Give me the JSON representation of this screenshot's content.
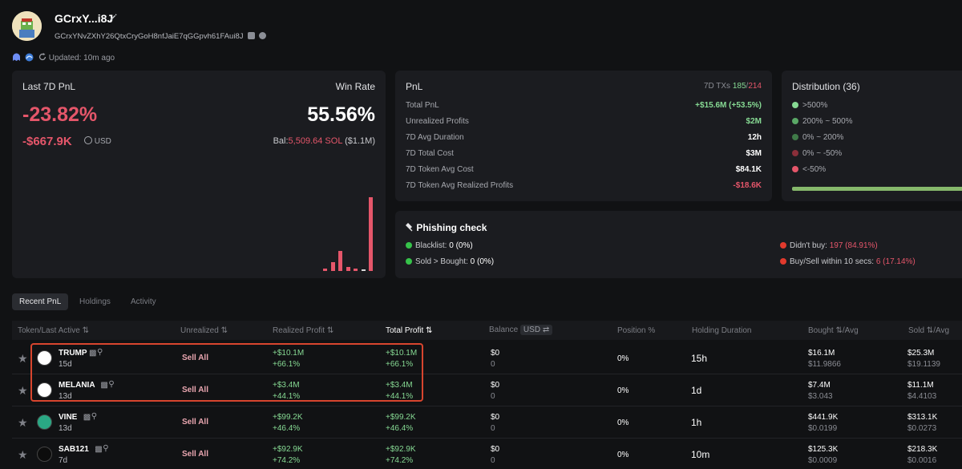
{
  "header": {
    "wallet_name": "GCrxY...i8J",
    "address": "GCrxYNvZXhY26QtxCryGoH8nfJaiE7qGGpvh61FAui8J",
    "updated": "Updated: 10m ago"
  },
  "summary": {
    "pnl_label": "Last 7D PnL",
    "pnl_pct": "-23.82%",
    "pnl_usd": "-$667.9K",
    "usd_label": "USD",
    "winrate_label": "Win Rate",
    "winrate": "55.56%",
    "bal_prefix": "Bal:",
    "bal_sol": "5,509.64 SOL",
    "bal_usd": "($1.1M)",
    "bars": [
      0.03,
      0.12,
      0.27,
      0.05,
      0.03,
      0.02,
      1.0
    ]
  },
  "pnl": {
    "title": "PnL",
    "txs_label": "7D TXs",
    "txs_buy": "185",
    "txs_sep": "/",
    "txs_sell": "214",
    "rows": [
      {
        "key": "Total PnL",
        "value": "+$15.6M (+53.5%)",
        "tone": "green"
      },
      {
        "key": "Unrealized Profits",
        "value": "$2M",
        "tone": "green"
      },
      {
        "key": "7D Avg Duration",
        "value": "12h",
        "tone": "white"
      },
      {
        "key": "7D Total Cost",
        "value": "$3M",
        "tone": "white"
      },
      {
        "key": "7D Token Avg Cost",
        "value": "$84.1K",
        "tone": "white"
      },
      {
        "key": "7D Token Avg Realized Profits",
        "value": "-$18.6K",
        "tone": "red"
      }
    ]
  },
  "distribution": {
    "title": "Distribution (36)",
    "items": [
      {
        "label": ">500%",
        "color": "#86d993"
      },
      {
        "label": "200% ~ 500%",
        "color": "#5aa866"
      },
      {
        "label": "0% ~ 200%",
        "color": "#3f7a48"
      },
      {
        "label": "0% ~ -50%",
        "color": "#8a2f3a"
      },
      {
        "label": "<-50%",
        "color": "#e5566a"
      }
    ],
    "bar_fill": 0.97
  },
  "phishing": {
    "title": "Phishing check",
    "blacklist_label": "Blacklist:",
    "blacklist_value": "0 (0%)",
    "sold_label": "Sold > Bought:",
    "sold_value": "0 (0%)",
    "didnt_label": "Didn't buy:",
    "didnt_value": "197 (84.91%)",
    "buysell_label": "Buy/Sell within 10 secs:",
    "buysell_value": "6 (17.14%)"
  },
  "tabs": [
    "Recent PnL",
    "Holdings",
    "Activity"
  ],
  "table": {
    "headers": {
      "token": "Token/Last Active",
      "unrealized": "Unrealized",
      "realized": "Realized Profit",
      "total": "Total Profit",
      "balance": "Balance",
      "balance_unit": "USD",
      "position": "Position %",
      "duration": "Holding Duration",
      "bought": "Bought",
      "bought_suffix": "/Avg",
      "sold": "Sold",
      "sold_suffix": "/Avg"
    },
    "sell_all": "Sell All",
    "rows": [
      {
        "name": "TRUMP",
        "age": "15d",
        "realized": "+$10.1M",
        "realized_pct": "+66.1%",
        "total": "+$10.1M",
        "total_pct": "+66.1%",
        "balance": "$0",
        "balance_sub": "0",
        "position": "0%",
        "duration": "15h",
        "bought": "$16.1M",
        "bought_avg": "$11.9866",
        "sold": "$25.3M",
        "sold_avg": "$19.1139",
        "icon_color": "#ffffff"
      },
      {
        "name": "MELANIA",
        "age": "13d",
        "realized": "+$3.4M",
        "realized_pct": "+44.1%",
        "total": "+$3.4M",
        "total_pct": "+44.1%",
        "balance": "$0",
        "balance_sub": "0",
        "position": "0%",
        "duration": "1d",
        "bought": "$7.4M",
        "bought_avg": "$3.043",
        "sold": "$11.1M",
        "sold_avg": "$4.4103",
        "icon_color": "#ffffff"
      },
      {
        "name": "VINE",
        "age": "13d",
        "realized": "+$99.2K",
        "realized_pct": "+46.4%",
        "total": "+$99.2K",
        "total_pct": "+46.4%",
        "balance": "$0",
        "balance_sub": "0",
        "position": "0%",
        "duration": "1h",
        "bought": "$441.9K",
        "bought_avg": "$0.0199",
        "sold": "$313.1K",
        "sold_avg": "$0.0273",
        "icon_color": "#2aa884"
      },
      {
        "name": "SAB121",
        "age": "7d",
        "realized": "+$92.9K",
        "realized_pct": "+74.2%",
        "total": "+$92.9K",
        "total_pct": "+74.2%",
        "balance": "$0",
        "balance_sub": "0",
        "position": "0%",
        "duration": "10m",
        "bought": "$125.3K",
        "bought_avg": "$0.0009",
        "sold": "$218.3K",
        "sold_avg": "$0.0016",
        "icon_color": "#0d0d0d"
      }
    ]
  }
}
